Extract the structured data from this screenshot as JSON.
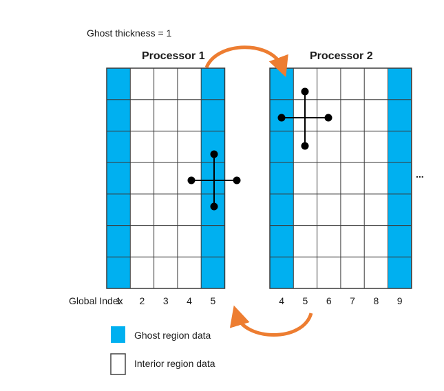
{
  "ghost_thickness_label": "Ghost thickness = 1",
  "processor1": {
    "title": "Processor 1",
    "columns": [
      {
        "index": "1",
        "type": "ghost"
      },
      {
        "index": "2",
        "type": "interior"
      },
      {
        "index": "3",
        "type": "interior"
      },
      {
        "index": "4",
        "type": "interior"
      },
      {
        "index": "5",
        "type": "ghost"
      }
    ],
    "rows": 7
  },
  "processor2": {
    "title": "Processor 2",
    "columns": [
      {
        "index": "4",
        "type": "ghost"
      },
      {
        "index": "5",
        "type": "interior"
      },
      {
        "index": "6",
        "type": "interior"
      },
      {
        "index": "7",
        "type": "interior"
      },
      {
        "index": "8",
        "type": "interior"
      },
      {
        "index": "9",
        "type": "ghost"
      }
    ],
    "rows": 7
  },
  "global_index_label": "Global Index",
  "ellipsis": "...",
  "legend": {
    "ghost": "Ghost region data",
    "interior": "Interior region data"
  },
  "colors": {
    "ghost": "#00b0f0",
    "arrow": "#ed7d31",
    "grid": "#3a3a3a",
    "stencil": "#000000"
  }
}
